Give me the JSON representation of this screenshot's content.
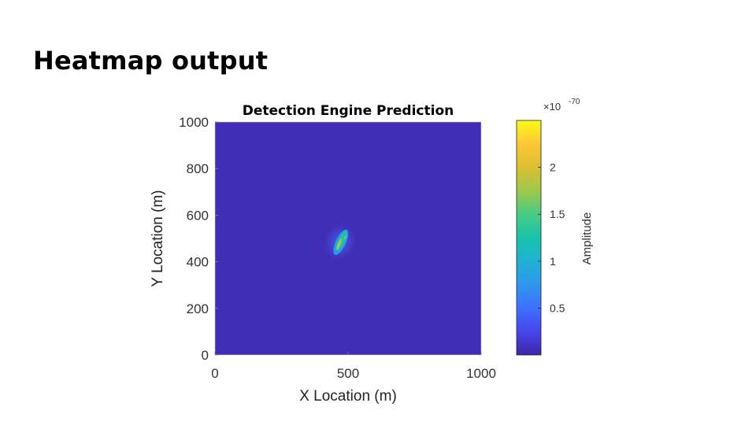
{
  "slide": {
    "title": "Heatmap output"
  },
  "chart_data": {
    "type": "heatmap",
    "title": "Detection Engine Prediction",
    "xlabel": "X Location (m)",
    "ylabel": "Y Location (m)",
    "xlim": [
      0,
      1000
    ],
    "ylim": [
      0,
      1000
    ],
    "x_ticks": [
      0,
      500,
      1000
    ],
    "y_ticks": [
      0,
      200,
      400,
      600,
      800,
      1000
    ],
    "colorbar": {
      "label": "Amplitude",
      "exponent_label": "×10",
      "exponent": "-70",
      "range": [
        0,
        2.5
      ],
      "ticks": [
        0.5,
        1,
        1.5,
        2
      ],
      "tick_labels": [
        "0.5",
        "1",
        "1.5",
        "2"
      ],
      "colormap": [
        "#3e26a8",
        "#4746eb",
        "#3e70ff",
        "#2f97ec",
        "#1fb1d3",
        "#19c3aa",
        "#48cb86",
        "#9dc94b",
        "#dbbf32",
        "#fec737",
        "#f9fb15"
      ]
    },
    "background_value": 0.05,
    "hotspot": {
      "center_x": 470,
      "center_y": 485,
      "peak_amplitude": 1.75,
      "orientation": "elongated along diagonal, lower-left to upper-right",
      "extent_x": [
        435,
        510
      ],
      "extent_y": [
        420,
        545
      ]
    }
  }
}
